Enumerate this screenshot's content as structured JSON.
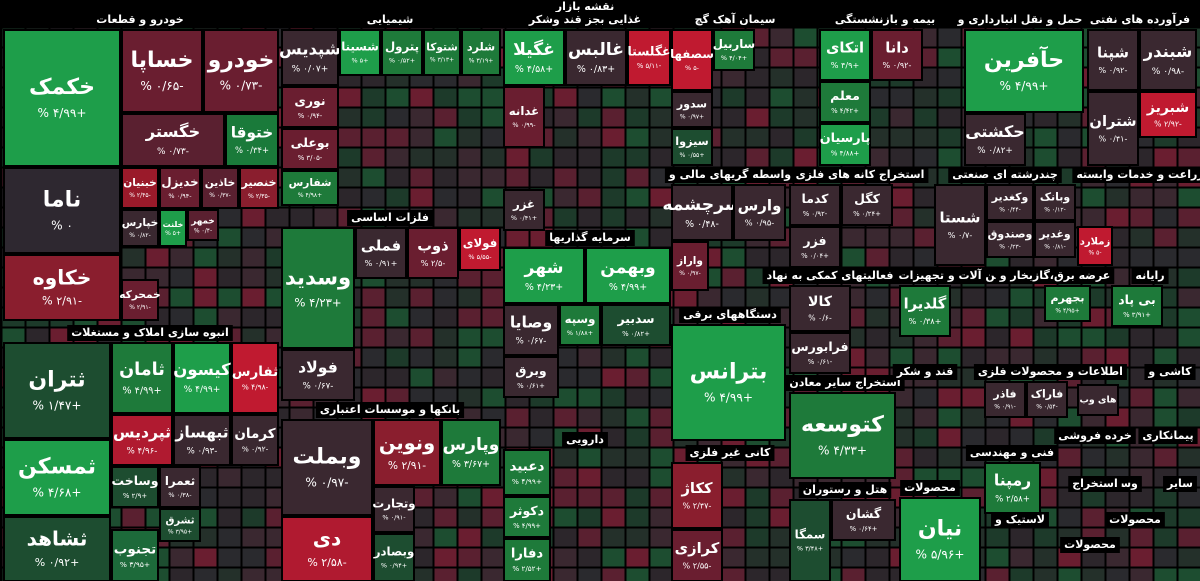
{
  "title": "نقشه بازار",
  "sectors": [
    {
      "name": "خودرو و قطعات",
      "tiles": [
        {
          "name": "خکمک",
          "change": "+۴/۹۹ %",
          "color": "#1e9e4a"
        },
        {
          "name": "خساپا",
          "change": "-۰/۶۵ %",
          "color": "#6a1e30"
        },
        {
          "name": "خودرو",
          "change": "-۰/۷۳ %",
          "color": "#6a1e30"
        },
        {
          "name": "خگستر",
          "change": "-۰/۷۳ %",
          "color": "#5a2030"
        },
        {
          "name": "ختوقا",
          "change": "+۰/۳۴ %",
          "color": "#1a7a3a"
        },
        {
          "name": "ناما",
          "change": "۰ %",
          "color": "#2e2830"
        },
        {
          "name": "خکاوه",
          "change": "-۲/۹۱ %",
          "color": "#8a1e2e"
        },
        {
          "name": "خبنیان",
          "change": "-۲/۴۵ %",
          "color": "#9a1a2a"
        },
        {
          "name": "خدیزل",
          "change": "-۰/۹۴ %",
          "color": "#6a1e30"
        },
        {
          "name": "خاذین",
          "change": "-۰/۳۷ %",
          "color": "#5a2030"
        },
        {
          "name": "خنصیر",
          "change": "-۲/۳۵ %",
          "color": "#8a1e2e"
        },
        {
          "name": "خپارس",
          "change": "-۰/۸۲ %",
          "color": "#3a2830"
        },
        {
          "name": "خلنت",
          "change": "+۵ %",
          "color": "#1e9e4a"
        },
        {
          "name": "خمهر",
          "change": "-۰/۴ %",
          "color": "#5a2030"
        },
        {
          "name": "خمحرکه",
          "change": "-۲/۹۱ %",
          "color": "#6a1e30"
        }
      ]
    },
    {
      "name": "انبوه سازی املاک و مستغلات",
      "tiles": [
        {
          "name": "ثتران",
          "change": "+۱/۴۷ %",
          "color": "#1d4d30"
        },
        {
          "name": "ثامان",
          "change": "+۴/۹۹ %",
          "color": "#1e7a3a"
        },
        {
          "name": "کیسون",
          "change": "+۴/۹۹ %",
          "color": "#1e9e4a"
        },
        {
          "name": "ثفارس",
          "change": "-۴/۹۸ %",
          "color": "#c01a30"
        },
        {
          "name": "ثمسکن",
          "change": "+۴/۶۸ %",
          "color": "#1e9e4a"
        },
        {
          "name": "ثشاهد",
          "change": "+۰/۹۲ %",
          "color": "#1d4d30"
        },
        {
          "name": "ثپردیس",
          "change": "-۴/۹۶ %",
          "color": "#b01a30"
        },
        {
          "name": "ثبهساز",
          "change": "-۰/۹۳ %",
          "color": "#3a2830"
        },
        {
          "name": "کرمان",
          "change": "-۰/۹۲ %",
          "color": "#3a2830"
        },
        {
          "name": "وساخت",
          "change": "+۲/۹ %",
          "color": "#1d4d30"
        },
        {
          "name": "ثعمرا",
          "change": "-۰/۳۸ %",
          "color": "#3a2830"
        },
        {
          "name": "ثشرق",
          "change": "+۳/۹۵ %",
          "color": "#1d4d30"
        },
        {
          "name": "تجنوب",
          "change": "+۳/۹۵ %",
          "color": "#1d6a3a"
        }
      ]
    },
    {
      "name": "شیمیایی",
      "tiles": [
        {
          "name": "شپدیس",
          "change": "+۰/۰۷ %",
          "color": "#3a2830"
        },
        {
          "name": "شسینا",
          "change": "+۵ %",
          "color": "#1e9e4a"
        },
        {
          "name": "پترول",
          "change": "+۰/۵۲ %",
          "color": "#1e7a3a"
        },
        {
          "name": "شتوکا",
          "change": "+۳/۱۳ %",
          "color": "#1e7a3a"
        },
        {
          "name": "شلرد",
          "change": "+۳/۱۹ %",
          "color": "#1e7a3a"
        },
        {
          "name": "نوری",
          "change": "-۰/۹۴ %",
          "color": "#6a1e30"
        },
        {
          "name": "بوعلی",
          "change": "-۳/۰۵ %",
          "color": "#6a1e30"
        },
        {
          "name": "شفارس",
          "change": "+۴/۹۸ %",
          "color": "#1e7a3a"
        }
      ]
    },
    {
      "name": "فلزات اساسی",
      "tiles": [
        {
          "name": "وسدید",
          "change": "+۴/۲۳ %",
          "color": "#1e7a3a"
        },
        {
          "name": "فملی",
          "change": "+۰/۹۱ %",
          "color": "#3a2830"
        },
        {
          "name": "ذوب",
          "change": "-۲/۵ %",
          "color": "#6a1e30"
        },
        {
          "name": "فولای",
          "change": "-۵/۵۵ %",
          "color": "#c01a30"
        },
        {
          "name": "فولاد",
          "change": "-۰/۶۷ %",
          "color": "#3a2830"
        }
      ]
    },
    {
      "name": "بانکها و موسسات اعتباری",
      "tiles": [
        {
          "name": "وبملت",
          "change": "-۰/۹۷ %",
          "color": "#3a2830"
        },
        {
          "name": "ونوین",
          "change": "-۲/۹۱ %",
          "color": "#8a1e2e"
        },
        {
          "name": "وپارس",
          "change": "+۳/۶۷ %",
          "color": "#1e7a3a"
        },
        {
          "name": "دی",
          "change": "-۲/۵۸ %",
          "color": "#b01a30"
        },
        {
          "name": "وتجارت",
          "change": "-۰/۹۱ %",
          "color": "#3a2830"
        },
        {
          "name": "وبصادر",
          "change": "+۰/۹۴ %",
          "color": "#1d4d30"
        }
      ]
    },
    {
      "name": "غذایی بجز قند وشکر",
      "tiles": [
        {
          "name": "غگیلا",
          "change": "+۴/۵۸ %",
          "color": "#1e9e4a"
        },
        {
          "name": "غالبس",
          "change": "+۰/۸۳ %",
          "color": "#3a2830"
        },
        {
          "name": "غگلستا",
          "change": "-۵/۱۱ %",
          "color": "#c01a30"
        },
        {
          "name": "غدانه",
          "change": "-۰/۹۹ %",
          "color": "#6a1e30"
        },
        {
          "name": "غزر",
          "change": "+۰/۴۱ %",
          "color": "#3a2830"
        }
      ]
    },
    {
      "name": "سرمایه گذاریها",
      "tiles": [
        {
          "name": "شهر",
          "change": "+۴/۲۳ %",
          "color": "#1e9e4a"
        },
        {
          "name": "وبهمن",
          "change": "+۴/۹۹ %",
          "color": "#1e9e4a"
        },
        {
          "name": "وسپه",
          "change": "+۱/۸۸ %",
          "color": "#1e7a3a"
        },
        {
          "name": "سدبیر",
          "change": "+۰/۸۲ %",
          "color": "#1d4d30"
        },
        {
          "name": "وصایا",
          "change": "-۰/۶۷ %",
          "color": "#3a2830"
        },
        {
          "name": "وبرق",
          "change": "+۰/۶۱ %",
          "color": "#3a2830"
        }
      ]
    },
    {
      "name": "دارویی",
      "tiles": [
        {
          "name": "دعبید",
          "change": "+۴/۹۹ %",
          "color": "#1e7a3a"
        },
        {
          "name": "دکوثر",
          "change": "+۴/۹۹ %",
          "color": "#1e7a3a"
        },
        {
          "name": "دفارا",
          "change": "+۲/۵۲ %",
          "color": "#1e7a3a"
        }
      ]
    },
    {
      "name": "سیمان آهک گچ",
      "tiles": [
        {
          "name": "سصفها",
          "change": "-۵ %",
          "color": "#c01a30"
        },
        {
          "name": "ساربیل",
          "change": "+۴/۰۴ %",
          "color": "#1e7a3a"
        },
        {
          "name": "سدور",
          "change": "+۰/۹۷ %",
          "color": "#3a2830"
        },
        {
          "name": "سیزوا",
          "change": "+۰/۵۵ %",
          "color": "#1d4d30"
        }
      ]
    },
    {
      "name": "واسطه گریهای مالی و",
      "tiles": [
        {
          "name": "سرچشمه",
          "change": "-۰/۴۸ %",
          "color": "#3a2830"
        },
        {
          "name": "وارس",
          "change": "-۰/۹۵ %",
          "color": "#3a2830"
        },
        {
          "name": "واراز",
          "change": "-۰/۹۷ %",
          "color": "#6a1e30"
        }
      ]
    },
    {
      "name": "دستگاههای برقی",
      "tiles": [
        {
          "name": "بترانس",
          "change": "+۴/۹۹ %",
          "color": "#1e9e4a"
        }
      ]
    },
    {
      "name": "کانی غیر فلزی",
      "tiles": [
        {
          "name": "ککاژ",
          "change": "-۲/۴۷ %",
          "color": "#8a1e2e"
        },
        {
          "name": "کرازی",
          "change": "-۲/۵۵ %",
          "color": "#6a1e30"
        }
      ]
    },
    {
      "name": "بیمه و بازنشستگی",
      "tiles": [
        {
          "name": "اتکای",
          "change": "+۴/۹ %",
          "color": "#1e9e4a"
        },
        {
          "name": "دانا",
          "change": "-۰/۹۲ %",
          "color": "#6a1e30"
        },
        {
          "name": "معلم",
          "change": "+۴/۴۲ %",
          "color": "#1e7a3a"
        },
        {
          "name": "پارسیان",
          "change": "+۴/۸۸ %",
          "color": "#1e9e4a"
        }
      ]
    },
    {
      "name": "استخراج کانه های فلزی",
      "tiles": [
        {
          "name": "کدما",
          "change": "-۰/۹۲ %",
          "color": "#3a2830"
        },
        {
          "name": "کگل",
          "change": "+۰/۲۴ %",
          "color": "#3a2830"
        },
        {
          "name": "فزر",
          "change": "+۰/۰۴ %",
          "color": "#3a2830"
        }
      ]
    },
    {
      "name": "فعالیتهای کمکی به نهاد",
      "tiles": [
        {
          "name": "کالا",
          "change": "-۰/۶ %",
          "color": "#3a2830"
        },
        {
          "name": "فرابورس",
          "change": "-۰/۶۱ %",
          "color": "#3a2830"
        }
      ]
    },
    {
      "name": "استخراج سایر معادن",
      "tiles": [
        {
          "name": "کتوسعه",
          "change": "+۴/۳۳ %",
          "color": "#1e7a3a"
        }
      ]
    },
    {
      "name": "هتل و رستوران",
      "tiles": [
        {
          "name": "سمگا",
          "change": "+۳/۴۸ %",
          "color": "#1d4d30"
        },
        {
          "name": "گشان",
          "change": "+۰/۶۴ %",
          "color": "#3a2830"
        }
      ]
    },
    {
      "name": "حمل و نقل انبارداری و",
      "tiles": [
        {
          "name": "حآفرین",
          "change": "+۴/۹۹ %",
          "color": "#1e9e4a"
        },
        {
          "name": "حکشتی",
          "change": "+۰/۸۲ %",
          "color": "#3a2830"
        }
      ]
    },
    {
      "name": "فرآورده های نفتی",
      "tiles": [
        {
          "name": "شپنا",
          "change": "-۰/۹۲ %",
          "color": "#3a2830"
        },
        {
          "name": "شبندر",
          "change": "-۰/۹۸ %",
          "color": "#3a2830"
        },
        {
          "name": "شبریز",
          "change": "-۲/۹۲ %",
          "color": "#c01a30"
        },
        {
          "name": "شتران",
          "change": "-۰/۴۱ %",
          "color": "#3a2830"
        }
      ]
    },
    {
      "name": "چندرشته ای صنعتی",
      "tiles": [
        {
          "name": "شستا",
          "change": "-۰/۷ %",
          "color": "#3a2830"
        },
        {
          "name": "وبانک",
          "change": "-۰/۱۲ %",
          "color": "#3a2830"
        },
        {
          "name": "وکغدیر",
          "change": "-۰/۴۴ %",
          "color": "#3a2830"
        },
        {
          "name": "وغدیر",
          "change": "-۰/۸۱ %",
          "color": "#3a2830"
        },
        {
          "name": "وصندوق",
          "change": "-۰/۲۳ %",
          "color": "#3a2830"
        }
      ]
    },
    {
      "name": "زراعت و خدمات وابسته",
      "tiles": [
        {
          "name": "زملارد",
          "change": "-۵ %",
          "color": "#c01a30"
        }
      ]
    },
    {
      "name": "ماشین آلات و تجهیزات",
      "tiles": [
        {
          "name": "گلدیرا",
          "change": "+۰/۳۸ %",
          "color": "#1e7a3a"
        }
      ]
    },
    {
      "name": "عرضه برق،گازبخار و",
      "tiles": [
        {
          "name": "بجهرم",
          "change": "+۴/۹۵ %",
          "color": "#1e7a3a"
        }
      ]
    },
    {
      "name": "رایانه",
      "tiles": [
        {
          "name": "بی پاد",
          "change": "+۳/۹۱ %",
          "color": "#1e7a3a"
        }
      ]
    },
    {
      "name": "قند و شکر",
      "tiles": []
    },
    {
      "name": "محصولات فلزی",
      "tiles": [
        {
          "name": "فاذر",
          "change": "-۰/۹۱ %",
          "color": "#3a2830"
        },
        {
          "name": "فاراک",
          "change": "-۰/۵۴ %",
          "color": "#3a2830"
        }
      ]
    },
    {
      "name": "اطلاعات و",
      "tiles": [
        {
          "name": "های وب",
          "color": "#3a2830"
        }
      ]
    },
    {
      "name": "کاشی و",
      "tiles": []
    },
    {
      "name": "خرده فروشی",
      "tiles": []
    },
    {
      "name": "پیمانکاری",
      "tiles": []
    },
    {
      "name": "فنی و مهندسی",
      "tiles": [
        {
          "name": "رمپنا",
          "change": "+۲/۵۸ %",
          "color": "#1e7a3a"
        }
      ]
    },
    {
      "name": "محصولات",
      "tiles": [
        {
          "name": "نیان",
          "change": "+۵/۹۶ %",
          "color": "#1e9e4a"
        }
      ]
    },
    {
      "name": "وسایل",
      "tiles": []
    },
    {
      "name": "سایر",
      "tiles": []
    },
    {
      "name": "استخراج",
      "tiles": []
    },
    {
      "name": "لاستیک و",
      "tiles": []
    },
    {
      "name": "محصولات",
      "tiles": []
    },
    {
      "name": "محصولات",
      "tiles": []
    }
  ]
}
